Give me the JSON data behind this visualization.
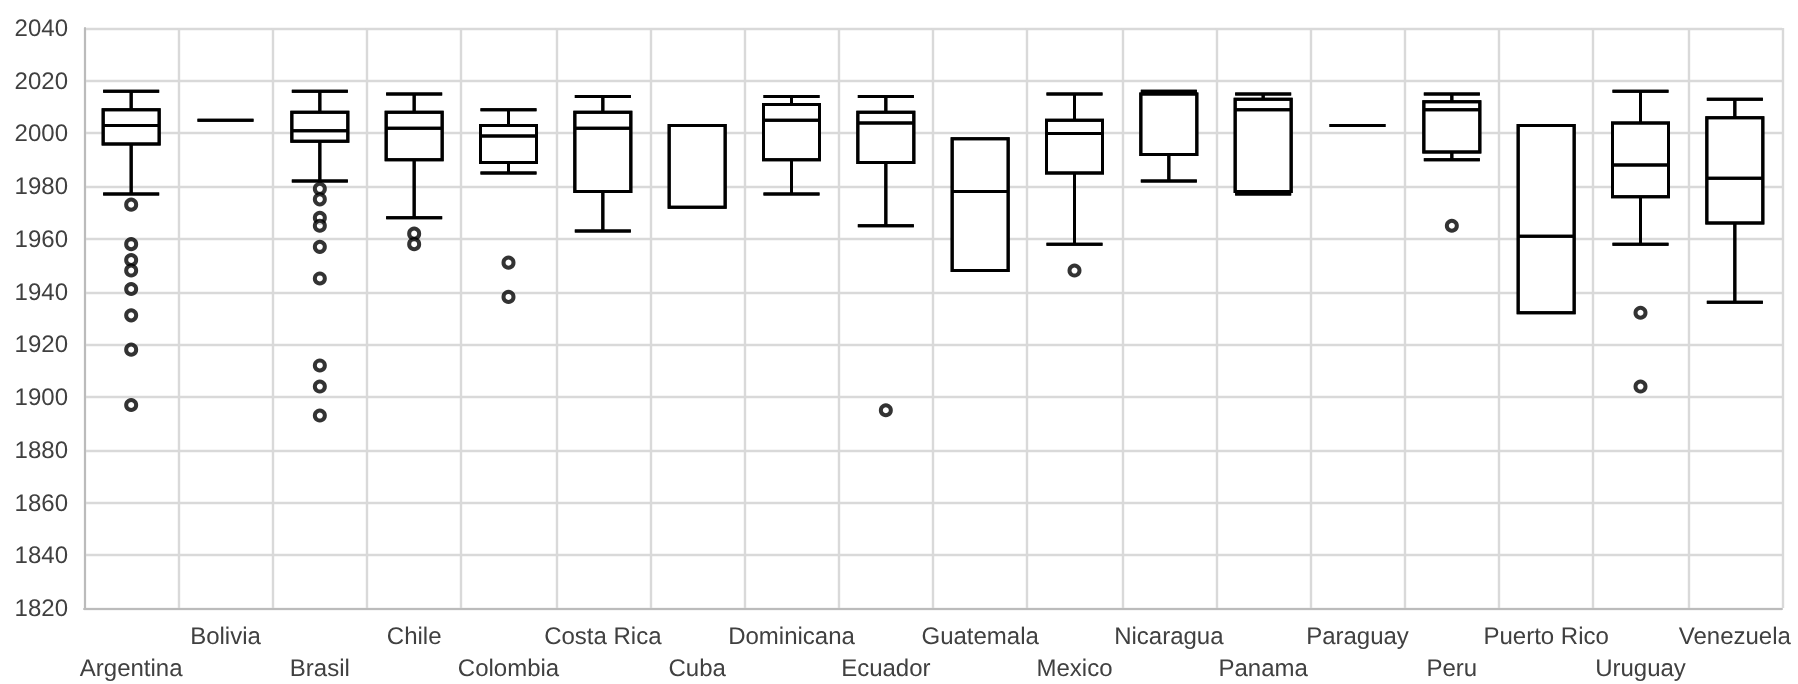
{
  "chart_data": {
    "type": "box",
    "categories": [
      "Argentina",
      "Bolivia",
      "Brasil",
      "Chile",
      "Colombia",
      "Costa Rica",
      "Cuba",
      "Dominicana",
      "Ecuador",
      "Guatemala",
      "Mexico",
      "Nicaragua",
      "Panama",
      "Paraguay",
      "Peru",
      "Puerto Rico",
      "Uruguay",
      "Venezuela"
    ],
    "ylim": [
      1820,
      2040
    ],
    "yticks": [
      1820,
      1840,
      1860,
      1880,
      1900,
      1920,
      1940,
      1960,
      1980,
      2000,
      2020,
      2040
    ],
    "grid": true,
    "series": [
      {
        "color": "#000000",
        "boxes": [
          {
            "low": 1977,
            "q1": 1996,
            "median": 2003,
            "q3": 2009,
            "high": 2016
          },
          {
            "low": 2005,
            "q1": 2005,
            "median": 2005,
            "q3": 2005,
            "high": 2005
          },
          {
            "low": 1982,
            "q1": 1997,
            "median": 2001,
            "q3": 2008,
            "high": 2016
          },
          {
            "low": 1968,
            "q1": 1990,
            "median": 2002,
            "q3": 2008,
            "high": 2015
          },
          {
            "low": 1985,
            "q1": 1989,
            "median": 1999,
            "q3": 2003,
            "high": 2009
          },
          {
            "low": 1963,
            "q1": 1978,
            "median": 2002,
            "q3": 2008,
            "high": 2014
          },
          {
            "low": 1972,
            "q1": 1972,
            "median": 1972,
            "q3": 2003,
            "high": 2003
          },
          {
            "low": 1977,
            "q1": 1990,
            "median": 2005,
            "q3": 2011,
            "high": 2014
          },
          {
            "low": 1965,
            "q1": 1989,
            "median": 2004,
            "q3": 2008,
            "high": 2014
          },
          {
            "low": 1948,
            "q1": 1948,
            "median": 1978,
            "q3": 1998,
            "high": 1998
          },
          {
            "low": 1958,
            "q1": 1985,
            "median": 2000,
            "q3": 2005,
            "high": 2015
          },
          {
            "low": 1982,
            "q1": 1992,
            "median": 2015,
            "q3": 2015,
            "high": 2016
          },
          {
            "low": 1977,
            "q1": 1978,
            "median": 2009,
            "q3": 2013,
            "high": 2015
          },
          {
            "low": 2003,
            "q1": 2003,
            "median": 2003,
            "q3": 2003,
            "high": 2003
          },
          {
            "low": 1990,
            "q1": 1993,
            "median": 2009,
            "q3": 2012,
            "high": 2015
          },
          {
            "low": 1932,
            "q1": 1932,
            "median": 1961,
            "q3": 2003,
            "high": 2003
          },
          {
            "low": 1958,
            "q1": 1976,
            "median": 1988,
            "q3": 2004,
            "high": 2016
          },
          {
            "low": 1936,
            "q1": 1966,
            "median": 1983,
            "q3": 2006,
            "high": 2013
          }
        ]
      },
      {
        "type": "scatter",
        "color": "#000000",
        "marker": "circle",
        "x": [
          "Argentina",
          "Argentina",
          "Argentina",
          "Argentina",
          "Argentina",
          "Argentina",
          "Argentina",
          "Argentina",
          "Brasil",
          "Brasil",
          "Brasil",
          "Brasil",
          "Brasil",
          "Brasil",
          "Brasil",
          "Brasil",
          "Brasil",
          "Chile",
          "Chile",
          "Colombia",
          "Colombia",
          "Ecuador",
          "Mexico",
          "Peru",
          "Uruguay",
          "Uruguay"
        ],
        "values": [
          1973,
          1958,
          1952,
          1948,
          1941,
          1931,
          1918,
          1897,
          1979,
          1975,
          1968,
          1965,
          1957,
          1945,
          1912,
          1904,
          1893,
          1962,
          1958,
          1951,
          1938,
          1895,
          1948,
          1965,
          1932,
          1904
        ]
      }
    ]
  }
}
